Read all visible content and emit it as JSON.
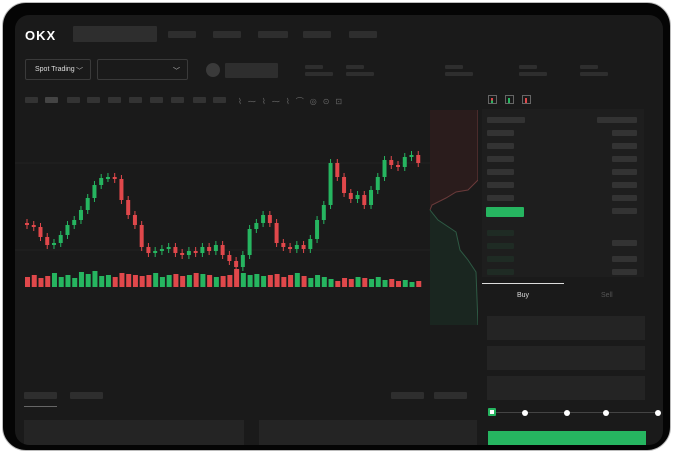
{
  "header": {
    "logo": "OKX",
    "mode_selector": "Spot Trading"
  },
  "trade": {
    "buy_tab": "Buy",
    "sell_tab": "Sell",
    "leverage_slider_level": 0
  },
  "colors": {
    "up": "#26b560",
    "down": "#e0484b",
    "background": "#1a1a1a"
  },
  "candles": [
    [
      208,
      210
    ],
    [
      210,
      212
    ],
    [
      212,
      222
    ],
    [
      222,
      230
    ],
    [
      230,
      228
    ],
    [
      228,
      220
    ],
    [
      220,
      210
    ],
    [
      210,
      205
    ],
    [
      205,
      195
    ],
    [
      195,
      183
    ],
    [
      183,
      170
    ],
    [
      170,
      163
    ],
    [
      163,
      162
    ],
    [
      162,
      164
    ],
    [
      164,
      185
    ],
    [
      185,
      200
    ],
    [
      200,
      210
    ],
    [
      210,
      232
    ],
    [
      232,
      238
    ],
    [
      238,
      236
    ],
    [
      236,
      234
    ],
    [
      234,
      232
    ],
    [
      232,
      238
    ],
    [
      238,
      240
    ],
    [
      240,
      236
    ],
    [
      236,
      238
    ],
    [
      238,
      232
    ],
    [
      232,
      236
    ],
    [
      236,
      230
    ],
    [
      230,
      240
    ],
    [
      240,
      246
    ],
    [
      246,
      252
    ],
    [
      252,
      240
    ],
    [
      240,
      214
    ],
    [
      214,
      208
    ],
    [
      208,
      200
    ],
    [
      200,
      208
    ],
    [
      208,
      228
    ],
    [
      228,
      232
    ],
    [
      232,
      234
    ],
    [
      234,
      230
    ],
    [
      230,
      234
    ],
    [
      234,
      224
    ],
    [
      224,
      205
    ],
    [
      205,
      190
    ],
    [
      190,
      148
    ],
    [
      148,
      162
    ],
    [
      162,
      178
    ],
    [
      178,
      184
    ],
    [
      184,
      180
    ],
    [
      180,
      190
    ],
    [
      190,
      175
    ],
    [
      175,
      162
    ],
    [
      162,
      145
    ],
    [
      145,
      150
    ],
    [
      150,
      152
    ],
    [
      152,
      142
    ],
    [
      142,
      140
    ],
    [
      140,
      148
    ]
  ],
  "volumes": [
    10,
    12,
    9,
    11,
    14,
    10,
    12,
    9,
    15,
    13,
    16,
    11,
    12,
    10,
    14,
    13,
    12,
    11,
    12,
    14,
    10,
    12,
    13,
    11,
    12,
    14,
    13,
    12,
    10,
    11,
    12,
    18,
    14,
    12,
    13,
    11,
    12,
    13,
    10,
    12,
    14,
    11,
    9,
    12,
    10,
    8,
    6,
    9,
    8,
    10,
    9,
    8,
    10,
    7,
    8,
    6,
    7,
    5,
    6
  ]
}
